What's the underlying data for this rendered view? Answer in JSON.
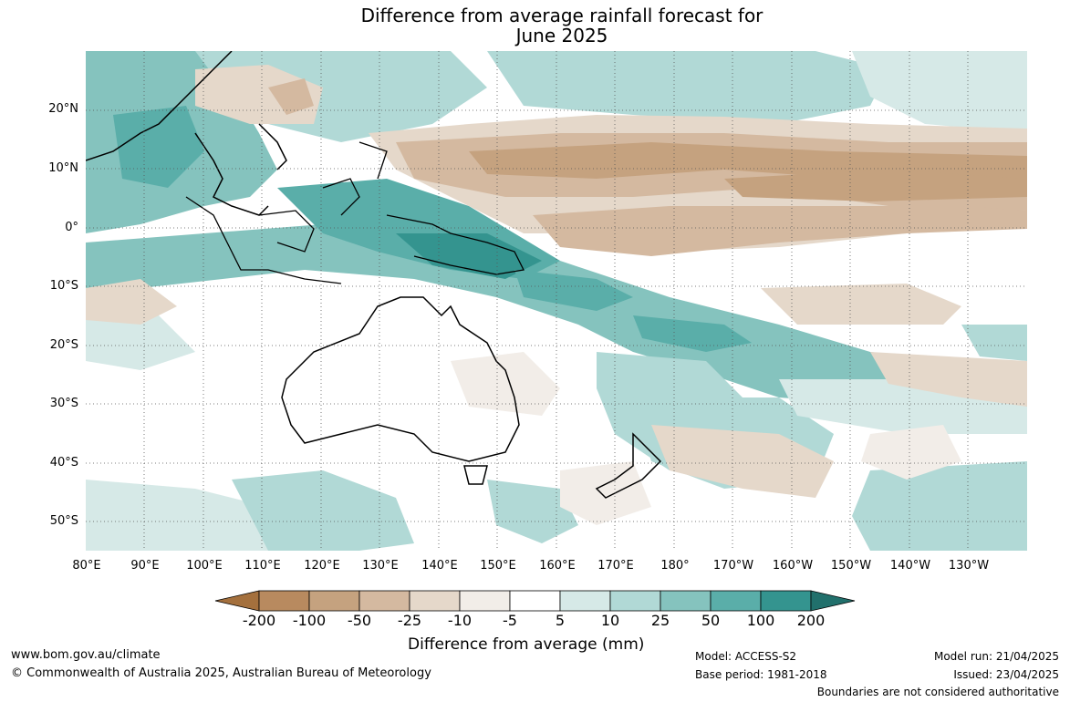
{
  "title": {
    "line1": "Difference from average rainfall forecast for",
    "line2": "June 2025"
  },
  "map": {
    "lat_labels": [
      "20°N",
      "10°N",
      "0°",
      "10°S",
      "20°S",
      "30°S",
      "40°S",
      "50°S"
    ],
    "lon_labels": [
      "80°E",
      "90°E",
      "100°E",
      "110°E",
      "120°E",
      "130°E",
      "140°E",
      "150°E",
      "160°E",
      "170°E",
      "180°",
      "170°W",
      "160°W",
      "150°W",
      "140°W",
      "130°W"
    ]
  },
  "colorbar": {
    "labels": [
      "-200",
      "-100",
      "-50",
      "-25",
      "-10",
      "-5",
      "5",
      "10",
      "25",
      "50",
      "100",
      "200"
    ],
    "colors": [
      "#a4703d",
      "#b88a5f",
      "#c5a27f",
      "#d4b9a0",
      "#e5d8ca",
      "#f2ede8",
      "#ffffff",
      "#d6e9e7",
      "#b1d9d6",
      "#85c3be",
      "#5aaea9",
      "#34948f",
      "#21706c"
    ],
    "title": "Difference from average (mm)"
  },
  "footer": {
    "website": "www.bom.gov.au/climate",
    "copyright": "© Commonwealth of Australia 2025, Australian Bureau of Meteorology",
    "model": "Model: ACCESS-S2",
    "base_period": "Base period: 1981-2018",
    "model_run": "Model run: 21/04/2025",
    "issued": "Issued: 23/04/2025",
    "disclaimer": "Boundaries are not considered authoritative"
  }
}
